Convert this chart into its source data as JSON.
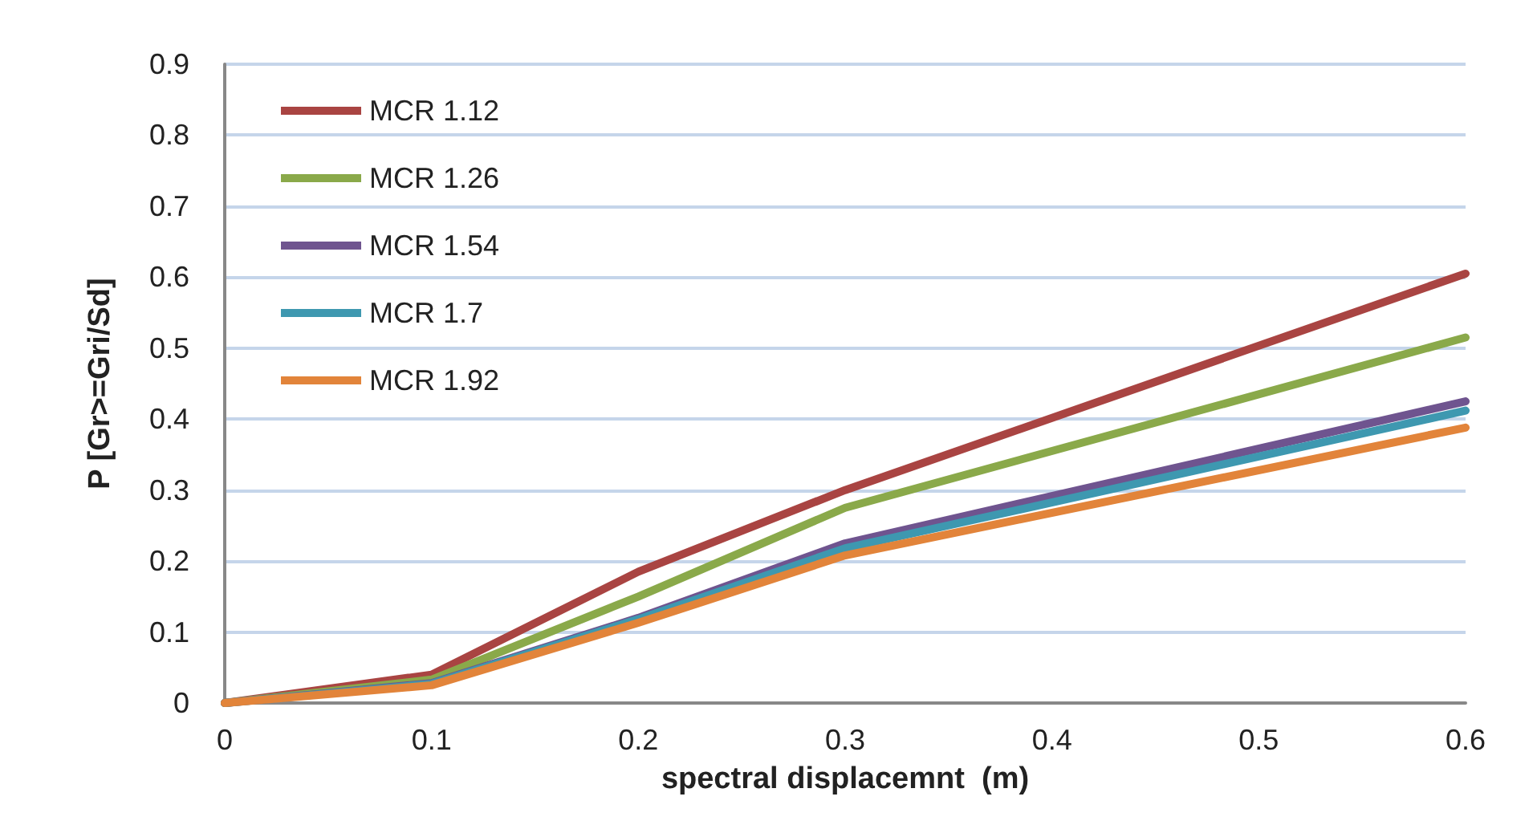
{
  "chart_data": {
    "type": "line",
    "xlabel": "spectral displacemnt  (m)",
    "ylabel": "P [Gr>=Gri/Sd]",
    "x": [
      0,
      0.1,
      0.2,
      0.3,
      0.6
    ],
    "series": [
      {
        "name": "MCR 1.12",
        "color": "#a94442",
        "values": [
          0,
          0.04,
          0.185,
          0.3,
          0.605
        ]
      },
      {
        "name": "MCR 1.26",
        "color": "#8aa94a",
        "values": [
          0,
          0.033,
          0.15,
          0.275,
          0.515
        ]
      },
      {
        "name": "MCR 1.54",
        "color": "#6f548f",
        "values": [
          0,
          0.028,
          0.12,
          0.225,
          0.425
        ]
      },
      {
        "name": "MCR 1.7",
        "color": "#3e98b0",
        "values": [
          0,
          0.027,
          0.118,
          0.218,
          0.412
        ]
      },
      {
        "name": "MCR 1.92",
        "color": "#e2843a",
        "values": [
          0,
          0.025,
          0.113,
          0.208,
          0.388
        ]
      }
    ],
    "xlim": [
      0,
      0.6
    ],
    "xticks": [
      0,
      0.1,
      0.2,
      0.3,
      0.4,
      0.5,
      0.6
    ],
    "ylim": [
      0,
      0.9
    ],
    "yticks": [
      0,
      0.1,
      0.2,
      0.3,
      0.4,
      0.5,
      0.6,
      0.7,
      0.8,
      0.9
    ],
    "grid": "y",
    "legend": "top left",
    "marker": "none",
    "line_style": "solid"
  }
}
